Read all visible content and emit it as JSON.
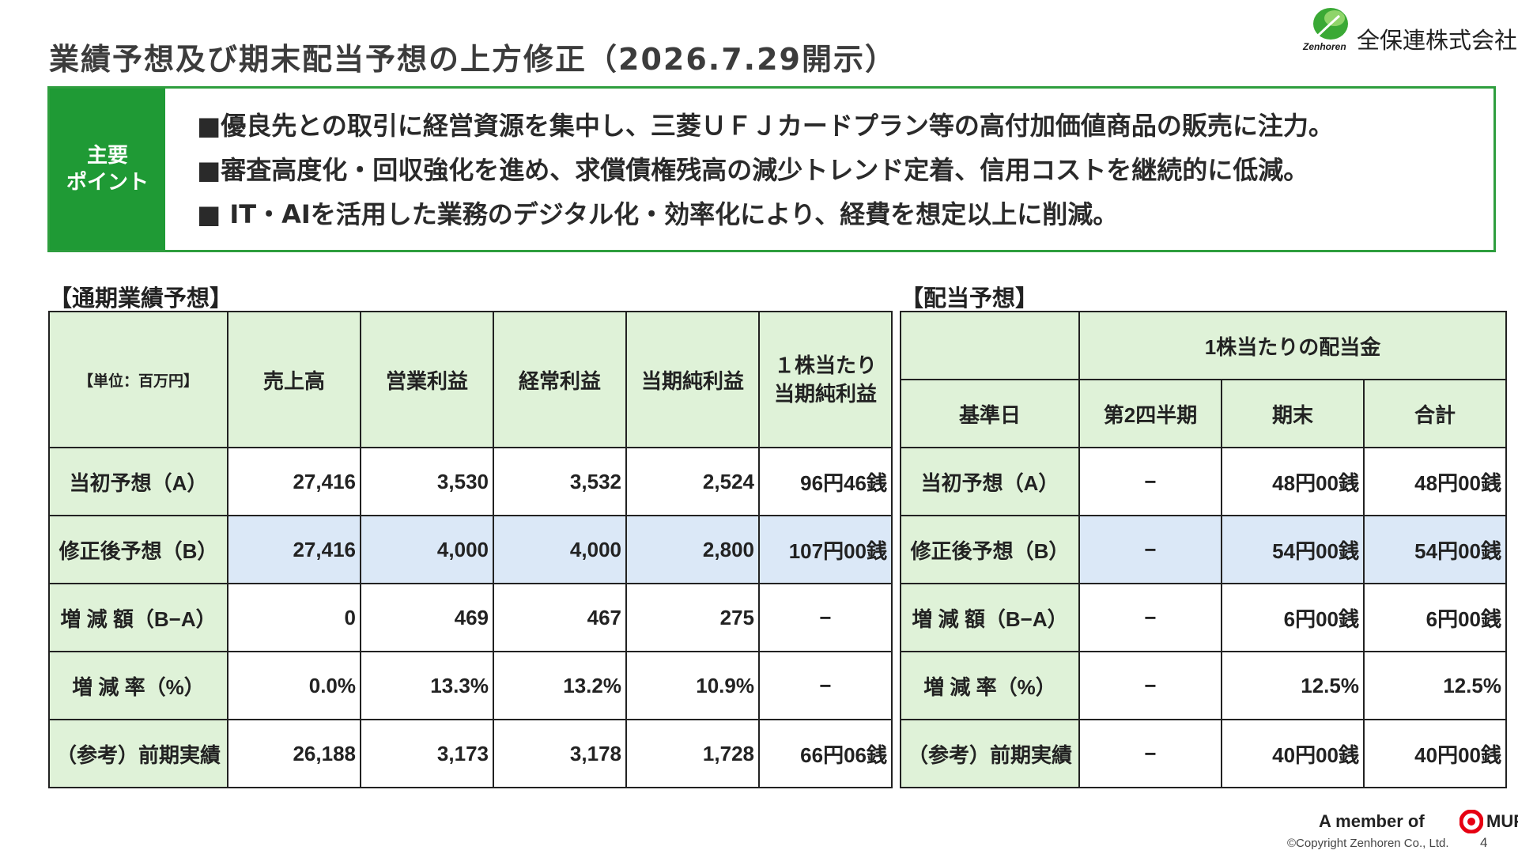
{
  "title": "業績予想及び期末配当予想の上方修正（2026.7.29開示）",
  "logo": {
    "small_text": "Zenhoren",
    "company_name": "全保連株式会社"
  },
  "key_points": {
    "label": "主要\nポイント",
    "items": [
      "■優良先との取引に経営資源を集中し、三菱ＵＦＪカードプラン等の高付加価値商品の販売に注力。",
      "■審査高度化・回収強化を進め、求償債権残高の減少トレンド定着、信用コストを継続的に低減。",
      "■ IT・AIを活用した業務のデジタル化・効率化により、経費を想定以上に削減。"
    ]
  },
  "earnings": {
    "section_title": "【通期業績予想】",
    "unit_label": "【単位：百万円】",
    "headers": [
      "売上高",
      "営業利益",
      "経常利益",
      "当期純利益",
      "１株当たり\n当期純利益"
    ],
    "rows": [
      {
        "label": "当初予想（A）",
        "values": [
          "27,416",
          "3,530",
          "3,532",
          "2,524",
          "96円46銭"
        ]
      },
      {
        "label": "修正後予想（B）",
        "values": [
          "27,416",
          "4,000",
          "4,000",
          "2,800",
          "107円00銭"
        ]
      },
      {
        "label": "増 減 額（B−A）",
        "values": [
          "0",
          "469",
          "467",
          "275",
          "−"
        ]
      },
      {
        "label": "増 減 率（%）",
        "values": [
          "0.0%",
          "13.3%",
          "13.2%",
          "10.9%",
          "−"
        ]
      },
      {
        "label": "（参考）前期実績",
        "values": [
          "26,188",
          "3,173",
          "3,178",
          "1,728",
          "66円06銭"
        ]
      }
    ]
  },
  "dividend": {
    "section_title": "【配当予想】",
    "group_header": "1株当たりの配当金",
    "headers": [
      "基準日",
      "第2四半期",
      "期末",
      "合計"
    ],
    "rows": [
      {
        "label": "当初予想（A）",
        "values": [
          "−",
          "48円00銭",
          "48円00銭"
        ]
      },
      {
        "label": "修正後予想（B）",
        "values": [
          "−",
          "54円00銭",
          "54円00銭"
        ]
      },
      {
        "label": "増 減 額（B−A）",
        "values": [
          "−",
          "6円00銭",
          "6円00銭"
        ]
      },
      {
        "label": "増 減 率（%）",
        "values": [
          "−",
          "12.5%",
          "12.5%"
        ]
      },
      {
        "label": "（参考）前期実績",
        "values": [
          "−",
          "40円00銭",
          "40円00銭"
        ]
      }
    ]
  },
  "footer": {
    "member_text": "A member of",
    "mufg": "MUFG",
    "copyright": "©Copyright Zenhoren Co., Ltd.",
    "page": "4"
  },
  "colors": {
    "accent_green": "#1f9a35",
    "header_fill": "#dff2d8",
    "highlight_row": "#dbe8f7",
    "mufg_red": "#e60012"
  }
}
